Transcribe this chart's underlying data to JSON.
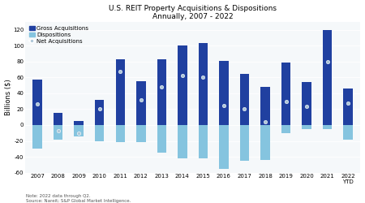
{
  "title": "U.S. REIT Property Acquisitions & Dispositions\nAnnually, 2007 - 2022",
  "ylabel": "Billions ($)",
  "note": "Note: 2022 data through Q2.\nSource: Nareit; S&P Global Market Intelligence.",
  "years": [
    "2007",
    "2008",
    "2009",
    "2010",
    "2011",
    "2012",
    "2013",
    "2014",
    "2015",
    "2016",
    "2017",
    "2018",
    "2019",
    "2020",
    "2021",
    "2022\nYTD"
  ],
  "gross_acquisitions": [
    57,
    15,
    5,
    32,
    83,
    55,
    83,
    100,
    103,
    81,
    65,
    48,
    79,
    54,
    120,
    46
  ],
  "dispositions": [
    -30,
    -18,
    -14,
    -20,
    -22,
    -22,
    -35,
    -42,
    -42,
    -55,
    -45,
    -44,
    -10,
    -5,
    -5,
    -18
  ],
  "net_acquisitions": [
    27,
    -7,
    -10,
    20,
    68,
    32,
    48,
    63,
    60,
    25,
    20,
    4,
    30,
    24,
    80,
    28
  ],
  "gross_color": "#2040a0",
  "disp_color": "#85c4df",
  "net_color": "#aec8d8",
  "ylim": [
    -60,
    130
  ],
  "yticks": [
    -60,
    -40,
    -20,
    0,
    20,
    40,
    60,
    80,
    100,
    120
  ],
  "legend_gross": "Gross Acquisitions",
  "legend_disp": "Dispositions",
  "legend_net": "Net Acquisitions",
  "background_color": "#ffffff",
  "plot_bg_color": "#f5f8fa",
  "title_fontsize": 6.5,
  "axis_fontsize": 6.0,
  "tick_fontsize": 5.0,
  "note_fontsize": 4.0,
  "bar_width": 0.45
}
